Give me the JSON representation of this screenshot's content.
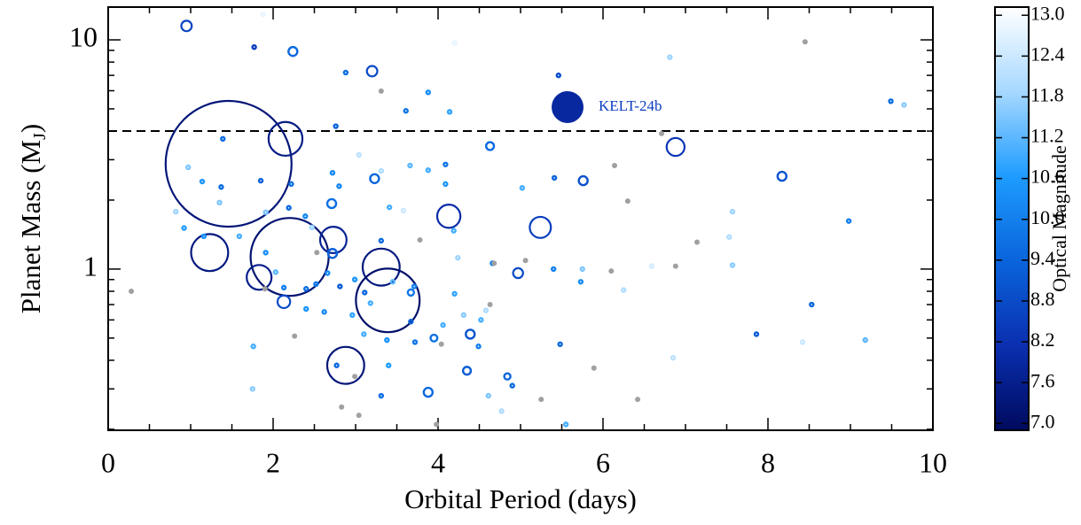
{
  "chart_data": {
    "type": "scatter",
    "xlabel": "Orbital Period (days)",
    "ylabel_parts": [
      "Planet Mass (M",
      "J",
      ")"
    ],
    "xlim": [
      0,
      10
    ],
    "xticks": [
      0,
      2,
      4,
      6,
      8,
      10
    ],
    "xminorticks": [
      0.5,
      1,
      1.5,
      2.5,
      3,
      3.5,
      4.5,
      5,
      5.5,
      6.5,
      7,
      7.5,
      8.5,
      9,
      9.5
    ],
    "ylim": [
      0.198,
      13.9
    ],
    "yscale": "log",
    "yticks": [
      1,
      10
    ],
    "yminorticks": [
      0.2,
      0.3,
      0.4,
      0.5,
      0.6,
      0.7,
      0.8,
      0.9,
      2,
      3,
      4,
      5,
      6,
      7,
      8,
      9
    ],
    "hline": 4,
    "colorbar": {
      "label": "Optical Magnitude",
      "clim": [
        6.9,
        13.12
      ],
      "colormap": [
        "#000a5e",
        "#0a2fb0",
        "#0a64dc",
        "#1e9cff",
        "#a6d8ff",
        "#ffffff"
      ],
      "ticks": [
        {
          "value": 7,
          "label": "7.0"
        },
        7.6,
        8.2,
        8.8,
        9.4,
        {
          "value": 10,
          "label": "10.0"
        },
        10.6,
        11.2,
        11.8,
        12.4,
        {
          "value": 13,
          "label": "13.0"
        }
      ]
    },
    "no_mag_color": "#a0a0a0",
    "annotation": {
      "text": "KELT-24b",
      "x": 5.57,
      "y": 5.09,
      "color": "#0a3cc0"
    },
    "series": [
      {
        "marker": "open",
        "x": [
          1.46,
          2.15,
          1.23,
          1.83,
          2.2,
          2.73,
          3.31,
          3.39,
          2.88,
          4.13,
          5.24,
          6.88,
          0.95,
          3.2,
          2.13,
          2.24,
          2.71,
          3.23,
          4.63,
          5.76,
          8.17,
          4.97,
          3.88,
          3.95,
          4.39,
          4.35,
          4.84,
          2.72,
          3.67,
          1.77,
          1.88,
          4.2,
          2.88,
          5.46,
          6.81,
          9.49,
          9.65,
          3.88,
          3.61,
          4.14,
          2.76,
          1.39,
          0.97,
          1.14,
          1.37,
          1.85,
          2.22,
          2.72,
          2.8,
          3.04,
          3.31,
          3.66,
          3.88,
          4.09,
          4.09,
          3.41,
          3.58,
          2.19,
          1.91,
          0.82,
          0.92,
          1.35,
          1.16,
          1.59,
          2.47,
          2.39,
          1.91,
          2.03,
          2.13,
          2.4,
          2.52,
          2.66,
          2.81,
          2.99,
          3.11,
          3.18,
          3.31,
          3.45,
          3.71,
          3.67,
          3.72,
          3.38,
          3.1,
          2.96,
          2.62,
          2.4,
          1.76,
          1.75,
          2.77,
          3.31,
          3.4,
          4.06,
          4.2,
          4.31,
          4.52,
          4.58,
          4.49,
          4.61,
          4.77,
          4.9,
          4.66,
          5.4,
          5.75,
          5.73,
          5.48,
          5.55,
          5.02,
          5.41,
          4.19,
          4.24,
          6.25,
          6.59,
          6.85,
          7.57,
          7.57,
          7.86,
          8.53,
          8.98,
          9.18,
          8.42,
          7.53
        ],
        "values": [
          2.88,
          3.7,
          1.18,
          0.92,
          1.13,
          1.34,
          1.02,
          0.73,
          0.38,
          1.7,
          1.52,
          3.41,
          11.5,
          7.3,
          0.72,
          8.9,
          1.93,
          2.48,
          3.44,
          2.43,
          2.54,
          0.96,
          0.29,
          0.5,
          0.52,
          0.36,
          0.34,
          1.17,
          0.79,
          9.3,
          12.9,
          9.7,
          7.2,
          7.0,
          8.4,
          5.4,
          5.2,
          5.9,
          4.9,
          4.85,
          4.2,
          3.7,
          2.78,
          2.41,
          2.28,
          2.43,
          2.35,
          2.63,
          2.3,
          3.15,
          2.68,
          2.83,
          2.7,
          2.86,
          2.35,
          1.86,
          1.8,
          1.85,
          1.77,
          1.78,
          1.51,
          1.95,
          1.39,
          1.39,
          1.52,
          1.7,
          1.18,
          0.97,
          0.83,
          0.82,
          0.86,
          0.96,
          0.84,
          0.9,
          0.79,
          0.71,
          1.33,
          0.88,
          0.84,
          0.59,
          0.48,
          0.49,
          0.52,
          0.63,
          0.65,
          0.67,
          0.46,
          0.3,
          0.38,
          0.28,
          0.38,
          0.57,
          0.78,
          0.63,
          0.6,
          0.66,
          0.46,
          0.28,
          0.24,
          0.31,
          1.06,
          1.0,
          1.0,
          0.88,
          0.47,
          0.21,
          2.26,
          2.5,
          1.47,
          1.12,
          0.81,
          1.03,
          0.41,
          1.04,
          1.78,
          0.52,
          0.7,
          1.62,
          0.49,
          0.48,
          1.38
        ],
        "mags": [
          7.3,
          7.5,
          7.4,
          7.6,
          7.2,
          7.7,
          7.4,
          7.1,
          7.3,
          8.0,
          8.5,
          8.3,
          8.6,
          8.8,
          8.8,
          9.5,
          9.6,
          9.4,
          9.5,
          8.9,
          9.0,
          8.8,
          9.5,
          9.7,
          9.0,
          9.2,
          9.4,
          9.3,
          9.8,
          8.5,
          12.8,
          12.8,
          9.6,
          8.9,
          11.8,
          9.6,
          11.6,
          10.3,
          9.8,
          10.8,
          9.4,
          9.5,
          11.5,
          10.5,
          9.6,
          9.3,
          9.7,
          10.2,
          10.1,
          12.2,
          12.0,
          11.2,
          11.0,
          9.8,
          10.5,
          11.0,
          12.4,
          9.5,
          11.5,
          11.8,
          10.7,
          11.5,
          10.4,
          11.0,
          11.8,
          10.2,
          10.4,
          11.2,
          10.0,
          9.6,
          9.8,
          10.3,
          9.2,
          10.5,
          9.4,
          11.0,
          9.5,
          11.2,
          10.0,
          9.3,
          9.8,
          10.4,
          11.0,
          10.8,
          10.2,
          10.5,
          11.0,
          11.6,
          9.5,
          9.6,
          10.6,
          11.0,
          10.8,
          11.6,
          11.0,
          12.0,
          10.0,
          11.5,
          12.0,
          9.5,
          10.0,
          10.0,
          11.5,
          10.3,
          9.5,
          11.0,
          11.0,
          9.4,
          11.0,
          11.8,
          12.0,
          12.5,
          12.2,
          11.6,
          11.8,
          9.2,
          9.4,
          10.0,
          11.2,
          12.4,
          12.0
        ],
        "sizes": [
          24,
          6.7,
          7.3,
          5,
          15,
          5.3,
          7.3,
          12.3,
          7.3,
          4.7,
          4.3,
          3.7,
          2.3,
          2.3,
          2.7,
          2,
          2,
          2,
          1.8,
          2,
          2,
          2.2,
          2,
          1.6,
          2,
          1.8,
          1.5,
          2,
          1.5,
          1,
          1,
          1,
          1,
          1,
          1,
          1,
          1,
          1,
          1,
          1,
          1,
          1,
          1,
          1,
          1,
          1,
          1,
          1,
          1,
          1,
          1,
          1,
          1,
          1,
          1,
          1,
          1,
          1,
          1,
          1,
          1,
          1,
          1,
          1,
          1,
          1,
          1,
          1,
          1,
          1,
          1,
          1,
          1,
          1,
          1,
          1,
          1,
          1,
          1,
          1,
          1,
          1,
          1,
          1,
          1,
          1,
          1,
          1,
          1,
          1,
          1,
          1,
          1,
          1,
          1,
          1,
          1,
          1,
          1,
          1,
          1,
          1,
          1,
          1,
          1,
          1,
          1,
          1,
          1,
          1,
          1,
          1,
          1,
          1,
          1,
          1,
          1,
          1,
          1,
          1,
          1
        ]
      },
      {
        "marker": "filled",
        "x": [
          0.28,
          1.9,
          2.26,
          2.53,
          2.83,
          2.99,
          3.04,
          3.31,
          3.78,
          4.04,
          3.98,
          4.63,
          5.25,
          6.14,
          6.3,
          6.1,
          6.71,
          6.88,
          5.89,
          6.42,
          7.14,
          8.45,
          4.68,
          5.06
        ],
        "values": [
          0.8,
          0.82,
          0.51,
          1.18,
          0.25,
          0.34,
          0.23,
          5.98,
          1.34,
          0.47,
          0.21,
          0.7,
          0.27,
          2.83,
          1.98,
          0.98,
          3.9,
          1.03,
          0.37,
          0.27,
          1.31,
          9.8,
          1.06,
          1.09
        ],
        "mags": [
          null,
          null,
          null,
          null,
          null,
          null,
          null,
          null,
          null,
          null,
          null,
          null,
          null,
          null,
          null,
          null,
          null,
          null,
          null,
          null,
          null,
          null,
          null,
          null
        ],
        "sizes": [
          1,
          1,
          1,
          1,
          1,
          1,
          1,
          1,
          1,
          1,
          1,
          1,
          1,
          1,
          1,
          1,
          1,
          1,
          1,
          1,
          1,
          1,
          1,
          1
        ]
      },
      {
        "marker": "filled",
        "x": [
          5.57
        ],
        "values": [
          5.09
        ],
        "mags": [
          7.9
        ],
        "sizes": [
          6
        ]
      }
    ]
  }
}
